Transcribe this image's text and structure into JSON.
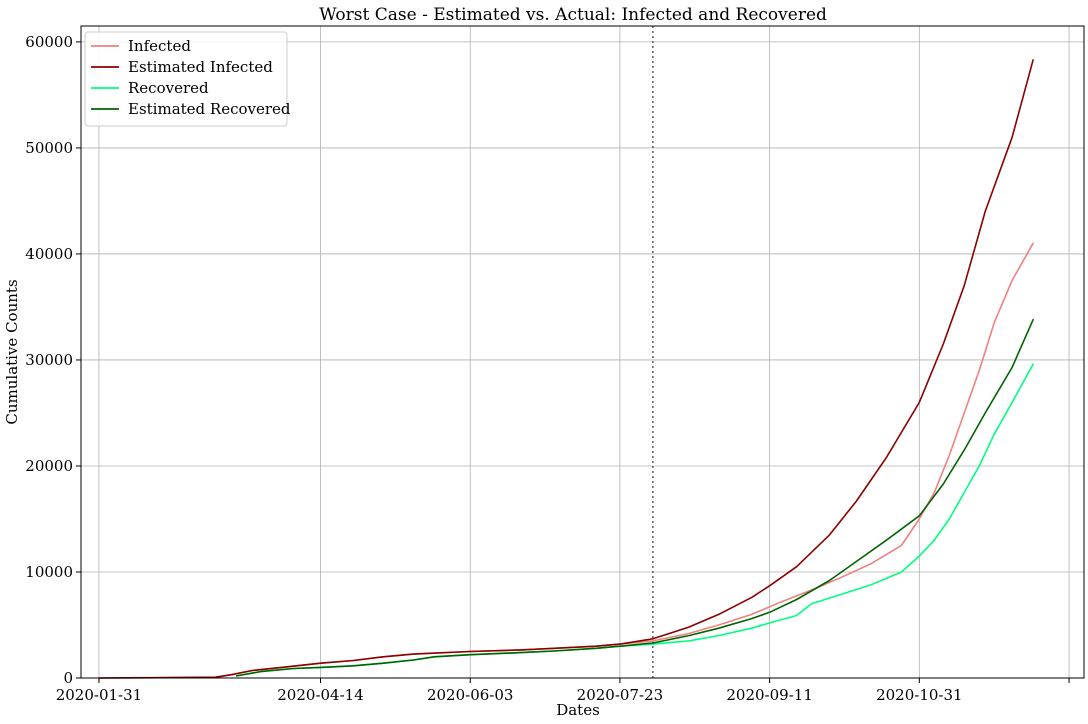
{
  "chart_data": {
    "type": "line",
    "title": "Worst Case - Estimated vs. Actual: Infected and Recovered",
    "xlabel": "Dates",
    "ylabel": "Cumulative Counts",
    "x_type": "date",
    "xlim": [
      "2020-01-25",
      "2020-12-25"
    ],
    "ylim": [
      0,
      61500
    ],
    "x_ticks": [
      "2020-01-31",
      "2020-04-14",
      "2020-06-03",
      "2020-07-23",
      "2020-09-11",
      "2020-10-31",
      "2020-12-20"
    ],
    "x_tick_labels": [
      "2020-01-31",
      "2020-04-14",
      "2020-06-03",
      "2020-07-23",
      "2020-09-11",
      "2020-10-31",
      ""
    ],
    "y_ticks": [
      0,
      10000,
      20000,
      30000,
      40000,
      50000,
      60000
    ],
    "y_tick_labels": [
      "0",
      "10000",
      "20000",
      "30000",
      "40000",
      "50000",
      "60000"
    ],
    "grid": true,
    "legend": "top-left",
    "vline": {
      "x": "2020-08-03",
      "style": "dotted",
      "color": "#666666"
    },
    "series": [
      {
        "name": "Infected",
        "color": "#f08080",
        "points": [
          [
            "2020-01-31",
            0
          ],
          [
            "2020-02-20",
            30
          ],
          [
            "2020-03-10",
            80
          ],
          [
            "2020-03-15",
            300
          ],
          [
            "2020-03-22",
            700
          ],
          [
            "2020-04-01",
            1000
          ],
          [
            "2020-04-14",
            1400
          ],
          [
            "2020-04-25",
            1650
          ],
          [
            "2020-05-05",
            2000
          ],
          [
            "2020-05-15",
            2250
          ],
          [
            "2020-06-03",
            2500
          ],
          [
            "2020-06-20",
            2650
          ],
          [
            "2020-07-01",
            2800
          ],
          [
            "2020-07-15",
            3000
          ],
          [
            "2020-07-23",
            3200
          ],
          [
            "2020-08-03",
            3500
          ],
          [
            "2020-08-15",
            4200
          ],
          [
            "2020-08-25",
            5000
          ],
          [
            "2020-09-05",
            6000
          ],
          [
            "2020-09-15",
            7200
          ],
          [
            "2020-09-25",
            8300
          ],
          [
            "2020-10-05",
            9500
          ],
          [
            "2020-10-15",
            10800
          ],
          [
            "2020-10-25",
            12500
          ],
          [
            "2020-10-31",
            15000
          ],
          [
            "2020-11-05",
            17500
          ],
          [
            "2020-11-10",
            21000
          ],
          [
            "2020-11-15",
            25000
          ],
          [
            "2020-11-20",
            29000
          ],
          [
            "2020-11-25",
            33500
          ],
          [
            "2020-12-01",
            37500
          ],
          [
            "2020-12-08",
            41000
          ]
        ]
      },
      {
        "name": "Estimated Infected",
        "color": "#8b0000",
        "points": [
          [
            "2020-01-31",
            0
          ],
          [
            "2020-02-20",
            30
          ],
          [
            "2020-03-10",
            80
          ],
          [
            "2020-03-15",
            300
          ],
          [
            "2020-03-22",
            700
          ],
          [
            "2020-04-01",
            1000
          ],
          [
            "2020-04-14",
            1400
          ],
          [
            "2020-04-25",
            1650
          ],
          [
            "2020-05-05",
            2000
          ],
          [
            "2020-05-15",
            2250
          ],
          [
            "2020-06-03",
            2500
          ],
          [
            "2020-06-20",
            2650
          ],
          [
            "2020-07-01",
            2800
          ],
          [
            "2020-07-15",
            3000
          ],
          [
            "2020-07-23",
            3200
          ],
          [
            "2020-08-03",
            3700
          ],
          [
            "2020-08-15",
            4800
          ],
          [
            "2020-08-25",
            6000
          ],
          [
            "2020-09-05",
            7600
          ],
          [
            "2020-09-11",
            8700
          ],
          [
            "2020-09-20",
            10500
          ],
          [
            "2020-10-01",
            13500
          ],
          [
            "2020-10-10",
            16700
          ],
          [
            "2020-10-20",
            20800
          ],
          [
            "2020-10-31",
            26000
          ],
          [
            "2020-11-08",
            31500
          ],
          [
            "2020-11-15",
            37000
          ],
          [
            "2020-11-22",
            44000
          ],
          [
            "2020-12-01",
            51000
          ],
          [
            "2020-12-08",
            58300
          ]
        ]
      },
      {
        "name": "Recovered",
        "color": "#00ff7f",
        "points": [
          [
            "2020-03-17",
            200
          ],
          [
            "2020-03-25",
            600
          ],
          [
            "2020-04-05",
            900
          ],
          [
            "2020-04-14",
            1000
          ],
          [
            "2020-04-25",
            1150
          ],
          [
            "2020-05-05",
            1400
          ],
          [
            "2020-05-15",
            1700
          ],
          [
            "2020-05-22",
            2000
          ],
          [
            "2020-06-03",
            2200
          ],
          [
            "2020-06-20",
            2400
          ],
          [
            "2020-07-01",
            2550
          ],
          [
            "2020-07-15",
            2800
          ],
          [
            "2020-07-23",
            3000
          ],
          [
            "2020-08-03",
            3200
          ],
          [
            "2020-08-15",
            3500
          ],
          [
            "2020-08-25",
            4000
          ],
          [
            "2020-09-05",
            4700
          ],
          [
            "2020-09-11",
            5200
          ],
          [
            "2020-09-20",
            5900
          ],
          [
            "2020-09-25",
            7000
          ],
          [
            "2020-10-05",
            7900
          ],
          [
            "2020-10-15",
            8800
          ],
          [
            "2020-10-25",
            10000
          ],
          [
            "2020-10-31",
            11500
          ],
          [
            "2020-11-05",
            13000
          ],
          [
            "2020-11-10",
            15000
          ],
          [
            "2020-11-15",
            17500
          ],
          [
            "2020-11-20",
            20000
          ],
          [
            "2020-11-25",
            23000
          ],
          [
            "2020-12-01",
            26000
          ],
          [
            "2020-12-08",
            29600
          ]
        ]
      },
      {
        "name": "Estimated Recovered",
        "color": "#006400",
        "points": [
          [
            "2020-03-17",
            200
          ],
          [
            "2020-03-25",
            600
          ],
          [
            "2020-04-05",
            900
          ],
          [
            "2020-04-14",
            1000
          ],
          [
            "2020-04-25",
            1150
          ],
          [
            "2020-05-05",
            1400
          ],
          [
            "2020-05-15",
            1700
          ],
          [
            "2020-05-22",
            2000
          ],
          [
            "2020-06-03",
            2200
          ],
          [
            "2020-06-20",
            2400
          ],
          [
            "2020-07-01",
            2550
          ],
          [
            "2020-07-15",
            2800
          ],
          [
            "2020-07-23",
            3000
          ],
          [
            "2020-08-03",
            3300
          ],
          [
            "2020-08-15",
            4000
          ],
          [
            "2020-08-25",
            4700
          ],
          [
            "2020-09-05",
            5600
          ],
          [
            "2020-09-11",
            6200
          ],
          [
            "2020-09-20",
            7400
          ],
          [
            "2020-10-01",
            9200
          ],
          [
            "2020-10-10",
            11000
          ],
          [
            "2020-10-20",
            13000
          ],
          [
            "2020-10-31",
            15300
          ],
          [
            "2020-11-08",
            18300
          ],
          [
            "2020-11-15",
            21500
          ],
          [
            "2020-11-22",
            25000
          ],
          [
            "2020-12-01",
            29300
          ],
          [
            "2020-12-08",
            33800
          ]
        ]
      }
    ]
  }
}
